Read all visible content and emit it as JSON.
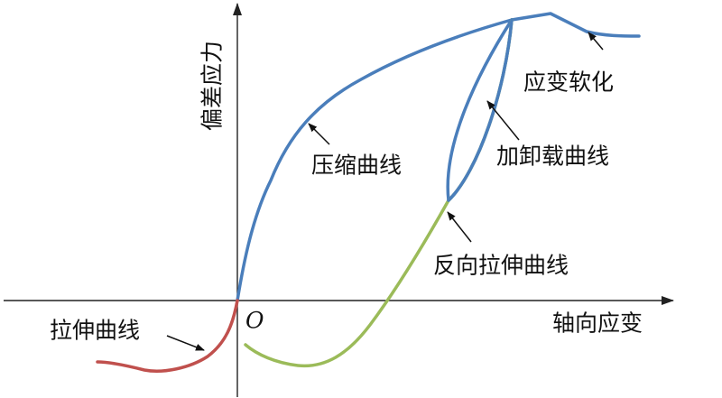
{
  "y_axis_label": "偏差应力",
  "x_axis_label": "轴向应变",
  "origin_label": "O",
  "labels": {
    "compression": "压缩曲线",
    "softening": "应变软化",
    "unload_reload": "加卸载曲线",
    "reverse_tension": "反向拉伸曲线",
    "tension": "拉伸曲线"
  }
}
